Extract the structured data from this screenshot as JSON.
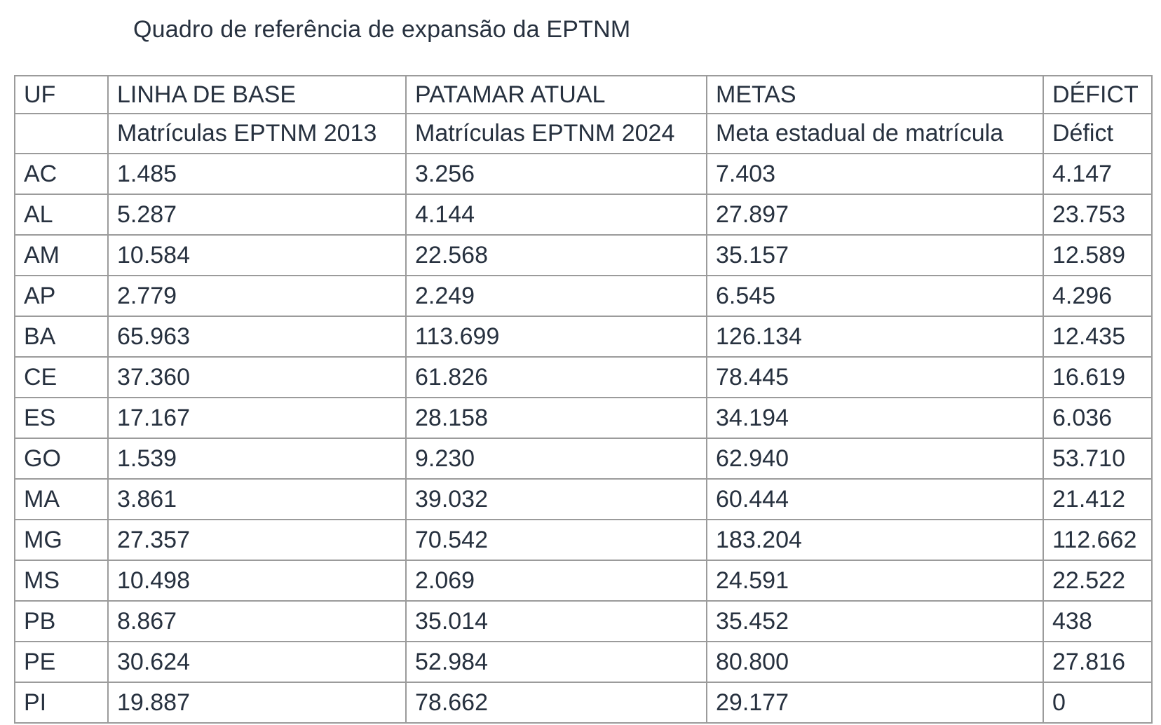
{
  "title": "Quadro de referência de expansão da EPTNM",
  "colors": {
    "text": "#27313f",
    "border": "#9b9b9b",
    "background": "#ffffff"
  },
  "table": {
    "header_row1": {
      "uf": "UF",
      "baseline": "LINHA DE BASE",
      "current": "PATAMAR ATUAL",
      "target": "METAS",
      "deficit": "DÉFICT"
    },
    "header_row2": {
      "uf": "",
      "baseline": "Matrículas EPTNM 2013",
      "current": "Matrículas EPTNM 2024",
      "target": "Meta estadual de matrícula",
      "deficit": "Défict"
    },
    "rows": [
      {
        "uf": "AC",
        "baseline": "1.485",
        "current": "3.256",
        "target": "7.403",
        "deficit": "4.147"
      },
      {
        "uf": "AL",
        "baseline": "5.287",
        "current": "4.144",
        "target": "27.897",
        "deficit": "23.753"
      },
      {
        "uf": "AM",
        "baseline": "10.584",
        "current": "22.568",
        "target": "35.157",
        "deficit": "12.589"
      },
      {
        "uf": "AP",
        "baseline": "2.779",
        "current": "2.249",
        "target": "6.545",
        "deficit": "4.296"
      },
      {
        "uf": "BA",
        "baseline": "65.963",
        "current": "113.699",
        "target": "126.134",
        "deficit": "12.435"
      },
      {
        "uf": "CE",
        "baseline": "37.360",
        "current": "61.826",
        "target": "78.445",
        "deficit": "16.619"
      },
      {
        "uf": "ES",
        "baseline": "17.167",
        "current": "28.158",
        "target": "34.194",
        "deficit": "6.036"
      },
      {
        "uf": "GO",
        "baseline": "1.539",
        "current": "9.230",
        "target": "62.940",
        "deficit": "53.710"
      },
      {
        "uf": "MA",
        "baseline": "3.861",
        "current": "39.032",
        "target": "60.444",
        "deficit": "21.412"
      },
      {
        "uf": "MG",
        "baseline": "27.357",
        "current": "70.542",
        "target": "183.204",
        "deficit": "112.662"
      },
      {
        "uf": "MS",
        "baseline": "10.498",
        "current": "2.069",
        "target": "24.591",
        "deficit": "22.522"
      },
      {
        "uf": "PB",
        "baseline": "8.867",
        "current": "35.014",
        "target": "35.452",
        "deficit": "438"
      },
      {
        "uf": "PE",
        "baseline": "30.624",
        "current": "52.984",
        "target": "80.800",
        "deficit": "27.816"
      },
      {
        "uf": "PI",
        "baseline": "19.887",
        "current": "78.662",
        "target": "29.177",
        "deficit": "0"
      }
    ]
  }
}
